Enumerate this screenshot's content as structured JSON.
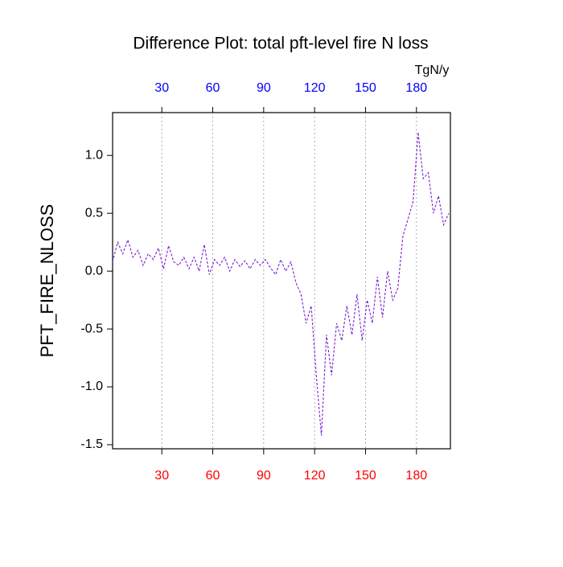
{
  "chart_data": {
    "type": "line",
    "title": "Difference Plot: total pft-level fire N loss",
    "ylabel": "PFT_FIRE_NLOSS",
    "units": "TgN/y",
    "x": [
      1,
      4,
      7,
      10,
      13,
      16,
      19,
      22,
      25,
      28,
      31,
      34,
      37,
      40,
      43,
      46,
      49,
      52,
      55,
      58,
      61,
      64,
      67,
      70,
      73,
      76,
      79,
      82,
      85,
      88,
      91,
      94,
      97,
      100,
      103,
      106,
      109,
      112,
      115,
      118,
      121,
      124,
      127,
      130,
      133,
      136,
      139,
      142,
      145,
      148,
      151,
      154,
      157,
      160,
      163,
      166,
      169,
      172,
      175,
      178,
      181,
      184,
      187,
      190,
      193,
      196,
      199
    ],
    "series": [
      {
        "color": "#7a1fd0",
        "dashed": true,
        "values": [
          0.08,
          0.25,
          0.15,
          0.27,
          0.12,
          0.18,
          0.05,
          0.15,
          0.1,
          0.2,
          0.02,
          0.22,
          0.08,
          0.05,
          0.12,
          0.02,
          0.12,
          0.0,
          0.23,
          -0.03,
          0.1,
          0.05,
          0.12,
          0.0,
          0.1,
          0.04,
          0.09,
          0.02,
          0.1,
          0.05,
          0.1,
          0.03,
          -0.03,
          0.1,
          0.0,
          0.08,
          -0.1,
          -0.2,
          -0.45,
          -0.3,
          -0.9,
          -1.42,
          -0.55,
          -0.9,
          -0.45,
          -0.6,
          -0.3,
          -0.55,
          -0.2,
          -0.6,
          -0.25,
          -0.45,
          -0.05,
          -0.4,
          0.0,
          -0.25,
          -0.15,
          0.3,
          0.45,
          0.6,
          1.2,
          0.8,
          0.85,
          0.5,
          0.65,
          0.4,
          0.5
        ]
      }
    ],
    "xlim": [
      1,
      200
    ],
    "ylim": [
      -1.535,
      1.37
    ],
    "xticks": [
      30,
      60,
      90,
      120,
      150,
      180
    ],
    "xtick_color": "#ff0000",
    "x2ticks": [
      30,
      60,
      90,
      120,
      150,
      180
    ],
    "x2tick_color": "#0000ff",
    "yticks": [
      {
        "value": -1.5,
        "label": "-1.5"
      },
      {
        "value": -1,
        "label": "-1.0"
      },
      -0.5,
      {
        "value": 0,
        "label": "0.0"
      },
      0.5,
      {
        "value": 1,
        "label": "1.0"
      }
    ],
    "grid": true
  }
}
